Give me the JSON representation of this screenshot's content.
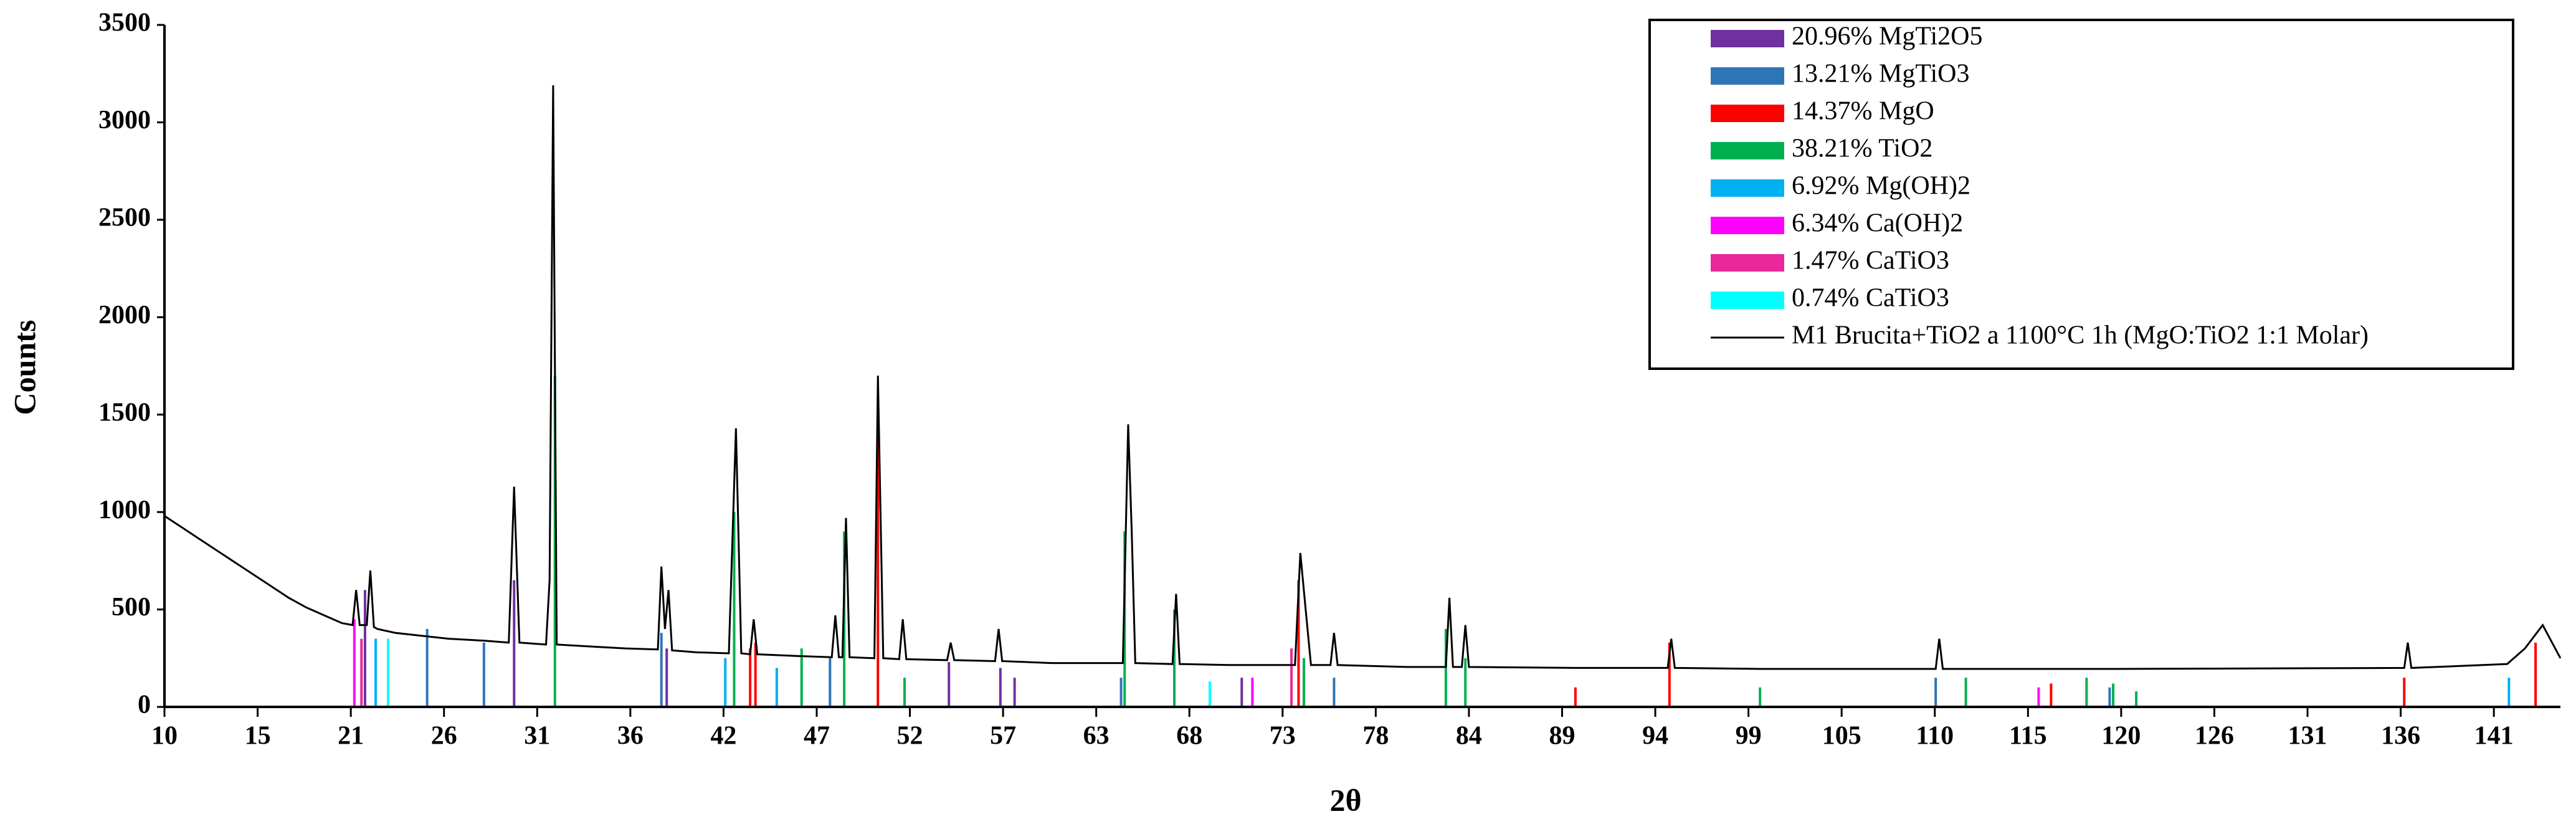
{
  "chart_data": {
    "type": "line",
    "x_label": "2θ",
    "y_label": "Counts",
    "legend": "top-right",
    "xlim": [
      10,
      145
    ],
    "ylim": [
      0,
      3500
    ],
    "xticks": [
      10,
      {
        "value": 15.25,
        "label": "15"
      },
      {
        "value": 20.5,
        "label": "21"
      },
      {
        "value": 25.75,
        "label": "26"
      },
      31,
      {
        "value": 36.25,
        "label": "36"
      },
      {
        "value": 41.5,
        "label": "42"
      },
      {
        "value": 46.75,
        "label": "47"
      },
      52,
      {
        "value": 57.25,
        "label": "57"
      },
      {
        "value": 62.5,
        "label": "63"
      },
      {
        "value": 67.75,
        "label": "68"
      },
      73,
      {
        "value": 78.25,
        "label": "78"
      },
      {
        "value": 83.5,
        "label": "84"
      },
      {
        "value": 88.75,
        "label": "89"
      },
      94,
      {
        "value": 99.25,
        "label": "99"
      },
      {
        "value": 104.5,
        "label": "105"
      },
      {
        "value": 109.75,
        "label": "110"
      },
      115,
      {
        "value": 120.25,
        "label": "120"
      },
      {
        "value": 125.5,
        "label": "126"
      },
      {
        "value": 130.75,
        "label": "131"
      },
      136,
      {
        "value": 141.25,
        "label": "141"
      }
    ],
    "yticks": [
      0,
      500,
      1000,
      1500,
      2000,
      2500,
      3000,
      3500
    ],
    "reference_patterns": [
      {
        "name": "20.96% MgTi2O5",
        "color": "#7030a0",
        "positions": [
          21.3,
          29.7,
          38.3,
          54.2,
          57.1,
          57.9,
          70.7
        ],
        "intensities": [
          600,
          650,
          300,
          230,
          200,
          150,
          150
        ]
      },
      {
        "name": "13.21% MgTiO3",
        "color": "#2e75b6",
        "positions": [
          24.8,
          28.0,
          38.0,
          47.5,
          63.9,
          75.9,
          109.8,
          119.6
        ],
        "intensities": [
          400,
          330,
          380,
          250,
          150,
          150,
          150,
          100
        ]
      },
      {
        "name": "14.37% MgO",
        "color": "#ff0000",
        "positions": [
          43.0,
          43.3,
          50.2,
          73.9,
          89.5,
          94.8,
          116.3,
          136.2,
          143.6
        ],
        "intensities": [
          300,
          330,
          1500,
          650,
          100,
          330,
          120,
          150,
          330
        ]
      },
      {
        "name": "38.21% TiO2",
        "color": "#00b050",
        "positions": [
          32.0,
          42.1,
          45.9,
          48.3,
          51.7,
          64.1,
          66.9,
          74.2,
          82.2,
          83.3,
          99.9,
          111.5,
          118.3,
          119.8,
          121.1
        ],
        "intensities": [
          1700,
          1000,
          300,
          900,
          150,
          900,
          500,
          250,
          400,
          250,
          100,
          150,
          150,
          120,
          80
        ]
      },
      {
        "name": "6.92% Mg(OH)2",
        "color": "#00b0f0",
        "positions": [
          21.9,
          41.6,
          44.5,
          142.1
        ],
        "intensities": [
          350,
          250,
          200,
          150
        ]
      },
      {
        "name": "6.34% Ca(OH)2",
        "color": "#ff00ff",
        "positions": [
          20.7,
          71.3,
          115.6
        ],
        "intensities": [
          450,
          150,
          100
        ]
      },
      {
        "name": "1.47% CaTiO3",
        "color": "#e8289b",
        "positions": [
          21.1,
          73.5
        ],
        "intensities": [
          350,
          300
        ]
      },
      {
        "name": "0.74% CaTiO3",
        "color": "#00ffff",
        "positions": [
          22.6,
          68.9
        ],
        "intensities": [
          350,
          130
        ]
      }
    ],
    "series": [
      {
        "name": "M1 Brucita+TiO2 a 1100°C 1h (MgO:TiO2 1:1 Molar)",
        "color": "#000000",
        "x": [
          10,
          11,
          12,
          13,
          14,
          15,
          16,
          17,
          18,
          19,
          20,
          20.6,
          20.8,
          21.0,
          21.4,
          21.6,
          21.8,
          22,
          23,
          25,
          26,
          28,
          29.4,
          29.7,
          30.0,
          31.5,
          31.7,
          31.9,
          32.1,
          34,
          36,
          37.8,
          38.0,
          38.2,
          38.4,
          38.6,
          40,
          41.8,
          42.2,
          42.5,
          43.0,
          43.2,
          43.4,
          46,
          47.6,
          47.8,
          48.0,
          48.2,
          48.4,
          48.6,
          50.0,
          50.2,
          50.5,
          51.4,
          51.6,
          51.8,
          54.1,
          54.3,
          54.5,
          56.8,
          57.0,
          57.2,
          60,
          64.0,
          64.3,
          64.5,
          64.7,
          66.8,
          67.0,
          67.2,
          70,
          73.7,
          74.0,
          74.3,
          74.6,
          75.7,
          75.9,
          76.1,
          80,
          82.2,
          82.4,
          82.6,
          83.1,
          83.3,
          83.5,
          89.5,
          94.7,
          94.9,
          95.1,
          100,
          109.8,
          110.0,
          110.2,
          120,
          136.2,
          136.4,
          136.6,
          142,
          143.0,
          144.0,
          145
        ],
        "values": [
          980,
          920,
          860,
          800,
          740,
          680,
          620,
          560,
          510,
          470,
          430,
          420,
          600,
          420,
          420,
          700,
          410,
          400,
          380,
          360,
          350,
          340,
          330,
          1130,
          330,
          320,
          650,
          3190,
          320,
          310,
          300,
          295,
          720,
          400,
          600,
          290,
          280,
          275,
          1430,
          275,
          270,
          450,
          270,
          260,
          255,
          470,
          255,
          255,
          970,
          255,
          250,
          1700,
          250,
          245,
          450,
          245,
          240,
          330,
          240,
          235,
          400,
          235,
          225,
          225,
          1450,
          900,
          225,
          220,
          580,
          220,
          215,
          215,
          790,
          500,
          215,
          215,
          380,
          215,
          205,
          205,
          560,
          205,
          205,
          420,
          205,
          200,
          200,
          350,
          200,
          195,
          195,
          350,
          195,
          195,
          200,
          330,
          200,
          220,
          300,
          420,
          250
        ]
      }
    ]
  }
}
